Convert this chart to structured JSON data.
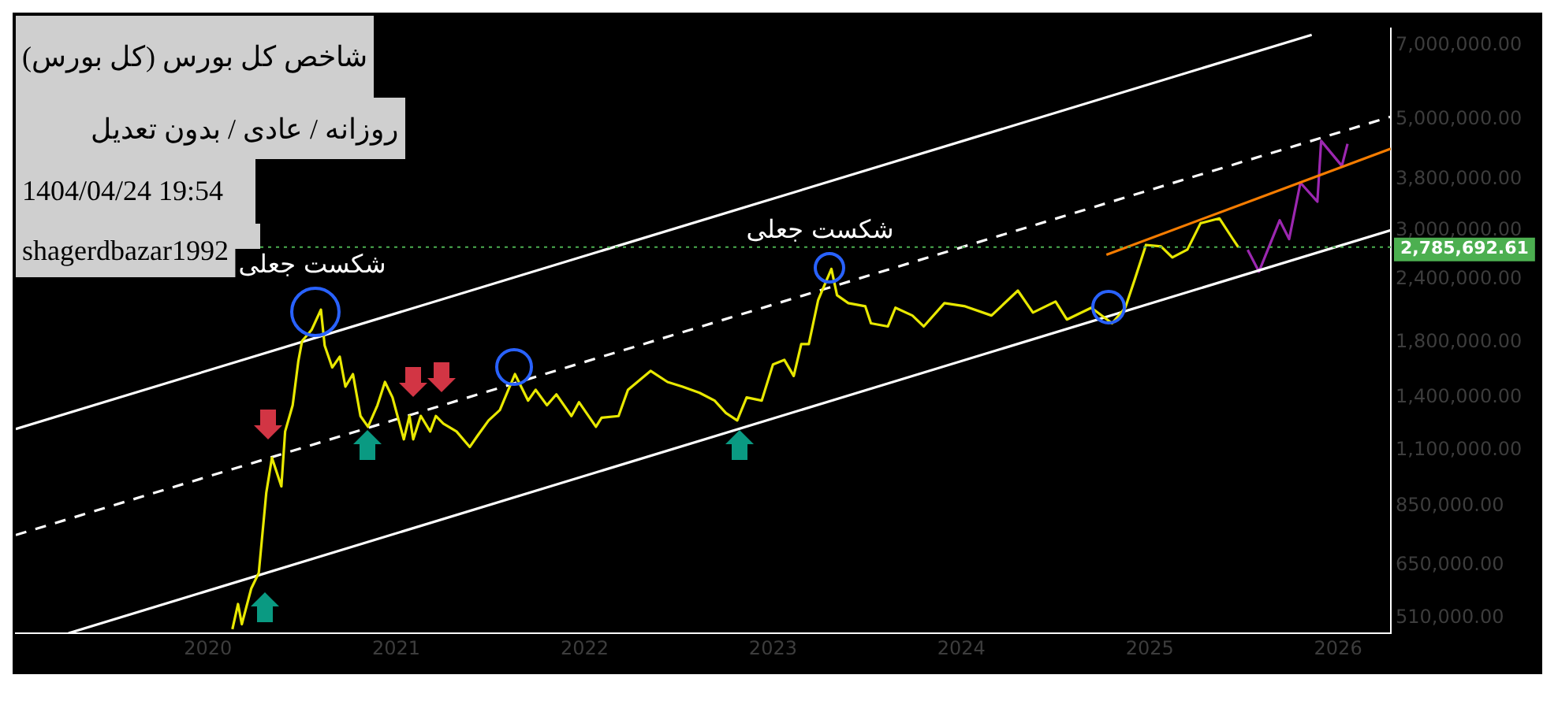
{
  "chart_data": {
    "type": "line",
    "title": "شاخص کل بورس (کل بورس)",
    "subtitle": "روزانه / عادی / بدون تعدیل",
    "annotations": [
      "1404/04/24 19:54",
      "shagerdbazar1992",
      "شکست جعلی",
      "شکست جعلی"
    ],
    "xlim": [
      2018.98,
      2026.28
    ],
    "xticks": [
      2020,
      2021,
      2022,
      2023,
      2024,
      2025,
      2026
    ],
    "ylim": [
      476000,
      7570000
    ],
    "log": true,
    "yticks": [
      {
        "value": 510000,
        "label": "510,000.00"
      },
      {
        "value": 650000,
        "label": "650,000.00"
      },
      {
        "value": 850000,
        "label": "850,000.00"
      },
      {
        "value": 1100000,
        "label": "1,100,000.00"
      },
      {
        "value": 1400000,
        "label": "1,400,000.00"
      },
      {
        "value": 1800000,
        "label": "1,800,000.00"
      },
      {
        "value": 2400000,
        "label": "2,400,000.00"
      },
      {
        "value": 3000000,
        "label": "3,000,000.00"
      },
      {
        "value": 3800000,
        "label": "3,800,000.00"
      },
      {
        "value": 5000000,
        "label": "5,000,000.00"
      },
      {
        "value": 7000000,
        "label": "7,000,000.00"
      }
    ],
    "grid": false,
    "legend": false,
    "ref_lines": [
      {
        "axis": "y",
        "value": 2785692.61,
        "label": "2,785,692.61",
        "color": "#4caf50",
        "line_style": "dotted"
      }
    ],
    "series": [
      {
        "color": "#e8e800",
        "line_style": "solid",
        "x": [
          2020.13,
          2020.16,
          2020.18,
          2020.23,
          2020.27,
          2020.31,
          2020.34,
          2020.39,
          2020.41,
          2020.45,
          2020.48,
          2020.5,
          2020.55,
          2020.6,
          2020.62,
          2020.66,
          2020.7,
          2020.73,
          2020.77,
          2020.81,
          2020.85,
          2020.9,
          2020.94,
          2020.98,
          2021.04,
          2021.07,
          2021.09,
          2021.13,
          2021.18,
          2021.21,
          2021.25,
          2021.32,
          2021.39,
          2021.43,
          2021.49,
          2021.55,
          2021.63,
          2021.7,
          2021.74,
          2021.8,
          2021.85,
          2021.93,
          2021.97,
          2022.06,
          2022.09,
          2022.18,
          2022.23,
          2022.35,
          2022.44,
          2022.52,
          2022.61,
          2022.69,
          2022.75,
          2022.81,
          2022.86,
          2022.94,
          2023.0,
          2023.06,
          2023.11,
          2023.15,
          2023.19,
          2023.24,
          2023.31,
          2023.34,
          2023.4,
          2023.49,
          2023.52,
          2023.61,
          2023.65,
          2023.74,
          2023.8,
          2023.91,
          2024.02,
          2024.16,
          2024.3,
          2024.38,
          2024.5,
          2024.56,
          2024.69,
          2024.8,
          2024.87,
          2024.92,
          2024.98,
          2025.06,
          2025.12,
          2025.2,
          2025.27,
          2025.37,
          2025.44,
          2025.47
        ],
        "values": [
          485000,
          544000,
          496000,
          584000,
          627000,
          906000,
          1062000,
          932000,
          1198000,
          1351000,
          1653000,
          1813000,
          1906000,
          2092000,
          1775000,
          1606000,
          1687000,
          1471000,
          1558000,
          1286000,
          1224000,
          1351000,
          1503000,
          1400000,
          1156000,
          1287000,
          1156000,
          1287000,
          1198000,
          1286000,
          1242000,
          1198000,
          1116000,
          1173000,
          1260000,
          1322000,
          1558000,
          1380000,
          1450000,
          1351000,
          1420000,
          1286000,
          1370000,
          1224000,
          1276000,
          1286000,
          1450000,
          1581000,
          1503000,
          1471000,
          1430000,
          1380000,
          1304000,
          1260000,
          1400000,
          1380000,
          1629000,
          1663000,
          1545000,
          1787000,
          1787000,
          2188000,
          2522000,
          2235000,
          2156000,
          2125000,
          1966000,
          1938000,
          2111000,
          2037000,
          1938000,
          2156000,
          2125000,
          2037000,
          2283000,
          2065000,
          2172000,
          2000000,
          2111000,
          1966000,
          2111000,
          2400000,
          2814000,
          2794000,
          2657000,
          2755000,
          3108000,
          3177000,
          2896000,
          2786000
        ]
      },
      {
        "color": "#ffffff",
        "line_style": "solid",
        "x": [
          2018.98,
          2025.86
        ],
        "values": [
          1212000,
          7360000
        ]
      },
      {
        "color": "#ffffff",
        "line_style": "dashed",
        "x": [
          2018.98,
          2026.28
        ],
        "values": [
          746000,
          5060000
        ]
      },
      {
        "color": "#ffffff",
        "line_style": "solid",
        "x": [
          2019.26,
          2026.28
        ],
        "values": [
          476000,
          3010000
        ]
      },
      {
        "color": "#f57c00",
        "line_style": "solid",
        "x": [
          2024.77,
          2026.28
        ],
        "values": [
          2690000,
          4370000
        ]
      },
      {
        "color": "#9c27b0",
        "line_style": "solid",
        "x": [
          2025.52,
          2025.58,
          2025.69,
          2025.74,
          2025.8,
          2025.89,
          2025.91,
          2026.02,
          2026.05
        ],
        "values": [
          2750000,
          2490000,
          3150000,
          2890000,
          3740000,
          3430000,
          4530000,
          4040000,
          4470000
        ]
      }
    ]
  }
}
